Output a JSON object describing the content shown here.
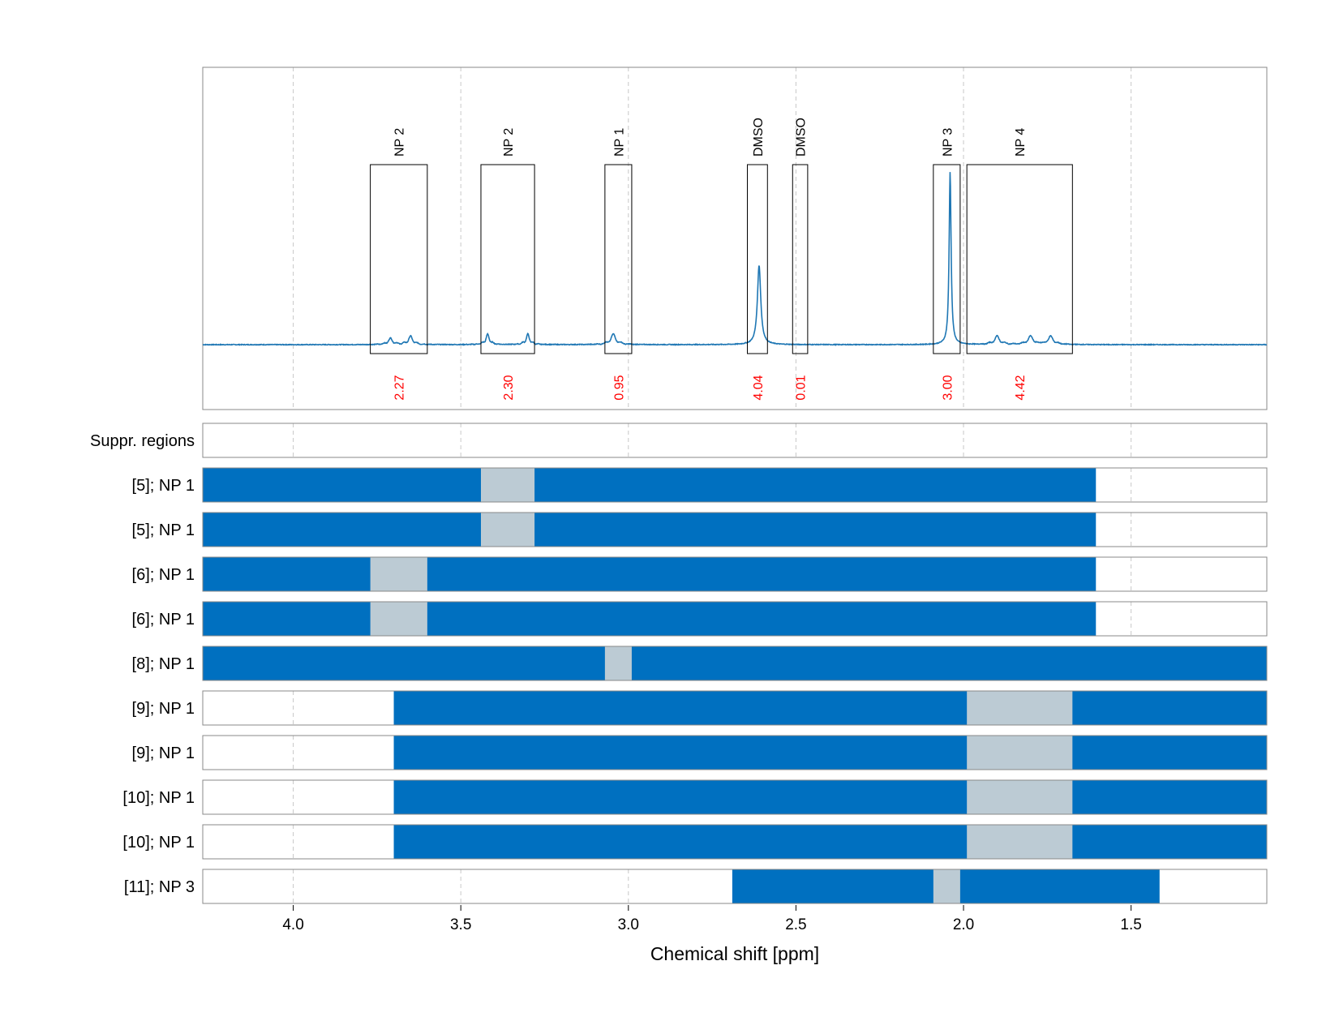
{
  "chart_data": {
    "type": "line",
    "xlabel": "Chemical shift [ppm]",
    "x_reversed": true,
    "xlim": [
      4.27,
      1.095
    ],
    "xticks": [
      4.0,
      3.5,
      3.0,
      2.5,
      2.0,
      1.5
    ],
    "xtick_labels": [
      "4.0",
      "3.5",
      "3.0",
      "2.5",
      "2.0",
      "1.5"
    ],
    "grid": "vertical dashed at ticks",
    "colors": {
      "spectrum": "#1f77b4",
      "range_fill": "#0070c0",
      "suppressed_fill": "#bccbd4",
      "integral_text": "#ff0000",
      "box_stroke": "#000000",
      "frame_stroke": "#888888",
      "grid": "#c8c8c8"
    },
    "spectrum": {
      "baseline": 0,
      "peaks": [
        {
          "center": 2.61,
          "height": 0.46,
          "width": 0.006
        },
        {
          "center": 2.04,
          "height": 1.0,
          "width": 0.0035
        },
        {
          "center": 3.045,
          "height": 0.05,
          "width": 0.012
        },
        {
          "center": 3.3,
          "height": 0.05,
          "width": 0.008
        },
        {
          "center": 3.42,
          "height": 0.05,
          "width": 0.008
        },
        {
          "center": 3.65,
          "height": 0.04,
          "width": 0.01
        },
        {
          "center": 3.71,
          "height": 0.03,
          "width": 0.01
        },
        {
          "center": 1.74,
          "height": 0.04,
          "width": 0.012
        },
        {
          "center": 1.8,
          "height": 0.04,
          "width": 0.012
        },
        {
          "center": 1.9,
          "height": 0.04,
          "width": 0.012
        }
      ],
      "y_max": 1.0
    },
    "integration_regions": [
      {
        "label": "NP 2",
        "from": 3.77,
        "to": 3.6,
        "integral": "2.27"
      },
      {
        "label": "NP 2",
        "from": 3.44,
        "to": 3.28,
        "integral": "2.30"
      },
      {
        "label": "NP 1",
        "from": 3.07,
        "to": 2.99,
        "integral": "0.95"
      },
      {
        "label": "DMSO",
        "from": 2.645,
        "to": 2.585,
        "integral": "4.04"
      },
      {
        "label": "DMSO",
        "from": 2.51,
        "to": 2.465,
        "integral": "0.01"
      },
      {
        "label": "NP 3",
        "from": 2.09,
        "to": 2.01,
        "integral": "3.00"
      },
      {
        "label": "NP 4",
        "from": 1.99,
        "to": 1.675,
        "integral": "4.42"
      }
    ],
    "range_rows": [
      {
        "label": "Suppr. regions",
        "range": null,
        "suppressed": null
      },
      {
        "label": "[5]; NP 1",
        "range": [
          4.27,
          1.605
        ],
        "suppressed": [
          3.44,
          3.28
        ]
      },
      {
        "label": "[5]; NP 1",
        "range": [
          4.27,
          1.605
        ],
        "suppressed": [
          3.44,
          3.28
        ]
      },
      {
        "label": "[6]; NP 1",
        "range": [
          4.27,
          1.605
        ],
        "suppressed": [
          3.77,
          3.6
        ]
      },
      {
        "label": "[6]; NP 1",
        "range": [
          4.27,
          1.605
        ],
        "suppressed": [
          3.77,
          3.6
        ]
      },
      {
        "label": "[8]; NP 1",
        "range": [
          4.27,
          1.095
        ],
        "suppressed": [
          3.07,
          2.99
        ]
      },
      {
        "label": "[9]; NP 1",
        "range": [
          3.7,
          1.095
        ],
        "suppressed": [
          1.99,
          1.675
        ]
      },
      {
        "label": "[9]; NP 1",
        "range": [
          3.7,
          1.095
        ],
        "suppressed": [
          1.99,
          1.675
        ]
      },
      {
        "label": "[10]; NP 1",
        "range": [
          3.7,
          1.095
        ],
        "suppressed": [
          1.99,
          1.675
        ]
      },
      {
        "label": "[10]; NP 1",
        "range": [
          3.7,
          1.095
        ],
        "suppressed": [
          1.99,
          1.675
        ]
      },
      {
        "label": "[11]; NP 3",
        "range": [
          2.69,
          1.415
        ],
        "suppressed": [
          2.09,
          2.01
        ]
      }
    ]
  }
}
